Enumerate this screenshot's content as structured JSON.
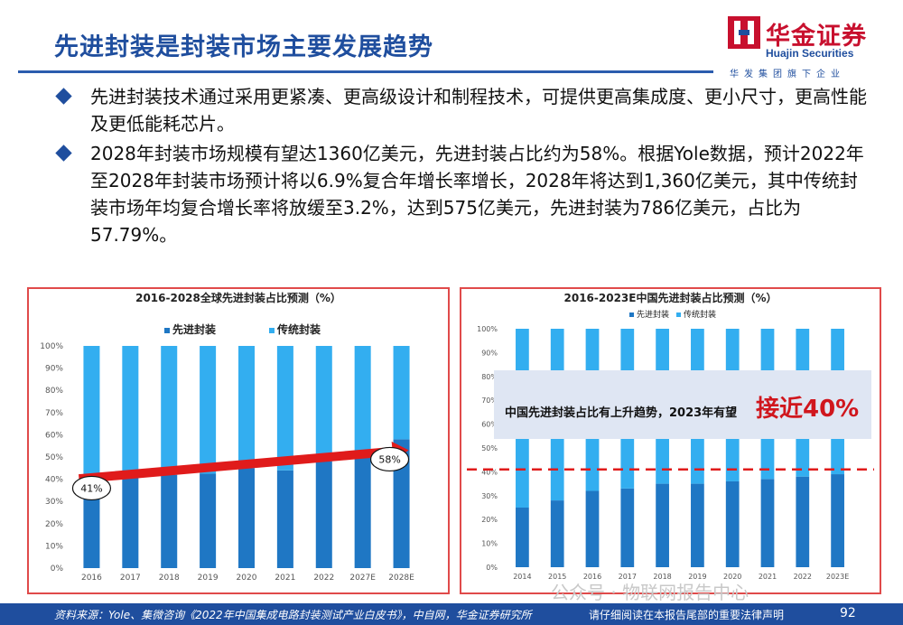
{
  "header": {
    "title": "先进封装是封装市场主要发展趋势"
  },
  "logo": {
    "cn": "华金证券",
    "en": "Huajin Securities",
    "sub": "华发集团旗下企业",
    "red": "#c8102e",
    "blue": "#1f4e9e"
  },
  "bullets": [
    "先进封装技术通过采用更紧凑、更高级设计和制程技术，可提供更高集成度、更小尺寸，更高性能及更低能耗芯片。",
    "2028年封装市场规模有望达1360亿美元，先进封装占比约为58%。根据Yole数据，预计2022年至2028年封装市场预计将以6.9%复合年增长率增长，2028年将达到1,360亿美元，其中传统封装市场年均复合增长率将放缓至3.2%，达到575亿美元，先进封装为786亿美元，占比为57.79%。"
  ],
  "colors": {
    "advanced": "#1f77c4",
    "traditional": "#33aef0",
    "accent_red": "#e01b1b"
  },
  "chart_data": [
    {
      "type": "bar",
      "stacked": true,
      "title": "2016-2028全球先进封装占比预测（%）",
      "categories": [
        "2016",
        "2017",
        "2018",
        "2019",
        "2020",
        "2021",
        "2022",
        "2027E",
        "2028E"
      ],
      "series": [
        {
          "name": "先进封装",
          "values": [
            41,
            41.5,
            42,
            42.5,
            45,
            44,
            48,
            53,
            58
          ]
        },
        {
          "name": "传统封装",
          "values": [
            59,
            58.5,
            58,
            57.5,
            55,
            56,
            52,
            47,
            42
          ]
        }
      ],
      "ylim": [
        0,
        100
      ],
      "y_ticks": [
        "0%",
        "10%",
        "20%",
        "30%",
        "40%",
        "50%",
        "60%",
        "70%",
        "80%",
        "90%",
        "100%"
      ],
      "annotations": {
        "start_label": "41%",
        "end_label": "58%"
      },
      "legend": "top"
    },
    {
      "type": "bar",
      "stacked": true,
      "title": "2016-2023E中国先进封装占比预测（%）",
      "categories": [
        "2014",
        "2015",
        "2016",
        "2017",
        "2018",
        "2019",
        "2020",
        "2021",
        "2022",
        "2023E"
      ],
      "series": [
        {
          "name": "先进封装",
          "values": [
            25,
            28,
            32,
            33,
            35,
            35,
            36,
            37,
            38,
            39
          ]
        },
        {
          "name": "传统封装",
          "values": [
            75,
            72,
            68,
            67,
            65,
            65,
            64,
            63,
            62,
            61
          ]
        }
      ],
      "ylim": [
        0,
        100
      ],
      "y_ticks": [
        "0%",
        "10%",
        "20%",
        "30%",
        "40%",
        "50%",
        "60%",
        "70%",
        "80%",
        "90%",
        "100%"
      ],
      "reference_line": 41,
      "callout": {
        "text": "中国先进封装占比有上升趋势，2023年有望",
        "emphasis": "接近40%"
      },
      "legend": "top"
    }
  ],
  "footer": {
    "source": "资料来源：Yole、集微咨询《2022年中国集成电路封装测试产业白皮书》，中自网，华金证券研究所",
    "legal": "请仔细阅读在本报告尾部的重要法律声明",
    "page": "92",
    "watermark": "公众号 · 物联网报告中心"
  }
}
